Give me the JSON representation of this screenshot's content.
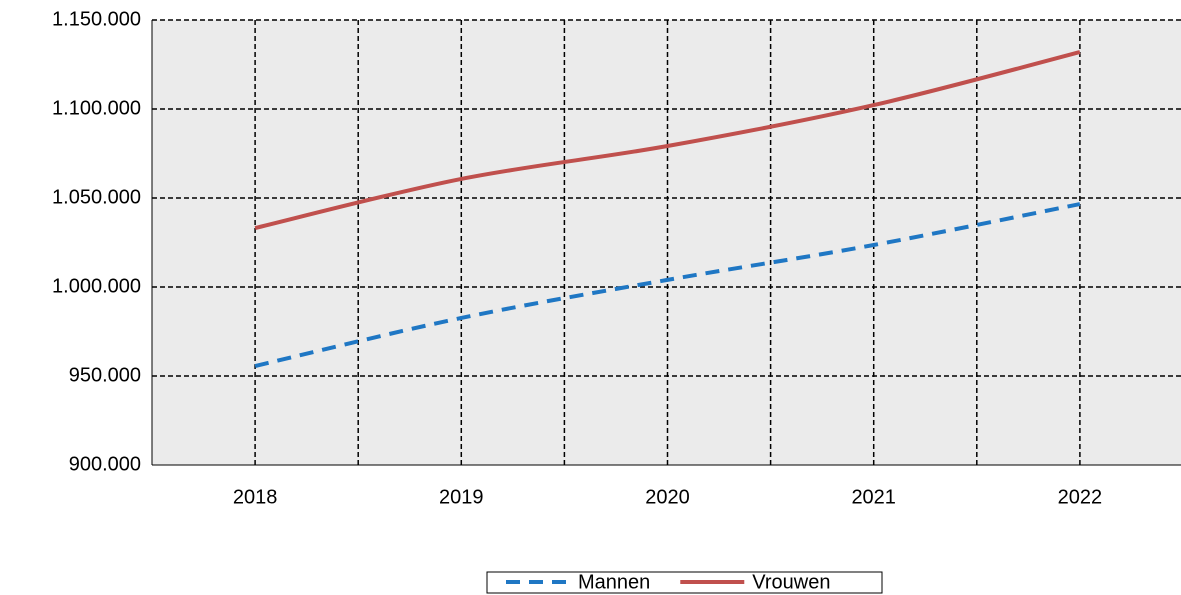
{
  "chart_data": {
    "type": "line",
    "categories": [
      "2018",
      "2019",
      "2020",
      "2021",
      "2022"
    ],
    "series": [
      {
        "name": "Mannen",
        "color": "#1f77c4",
        "dashed": true,
        "values": [
          955600,
          982600,
          1004000,
          1023600,
          1046600
        ]
      },
      {
        "name": "Vrouwen",
        "color": "#c0504d",
        "dashed": false,
        "values": [
          1033100,
          1060700,
          1079200,
          1102200,
          1132000
        ]
      }
    ],
    "ylim": [
      900000,
      1150000
    ],
    "yticks": [
      {
        "value": 900000,
        "label": "900.000"
      },
      {
        "value": 950000,
        "label": "950.000"
      },
      {
        "value": 1000000,
        "label": "1.000.000"
      },
      {
        "value": 1050000,
        "label": "1.050.000"
      },
      {
        "value": 1100000,
        "label": "1.100.000"
      },
      {
        "value": 1150000,
        "label": "1.150.000"
      }
    ],
    "grid": true,
    "legend": "bottom"
  }
}
